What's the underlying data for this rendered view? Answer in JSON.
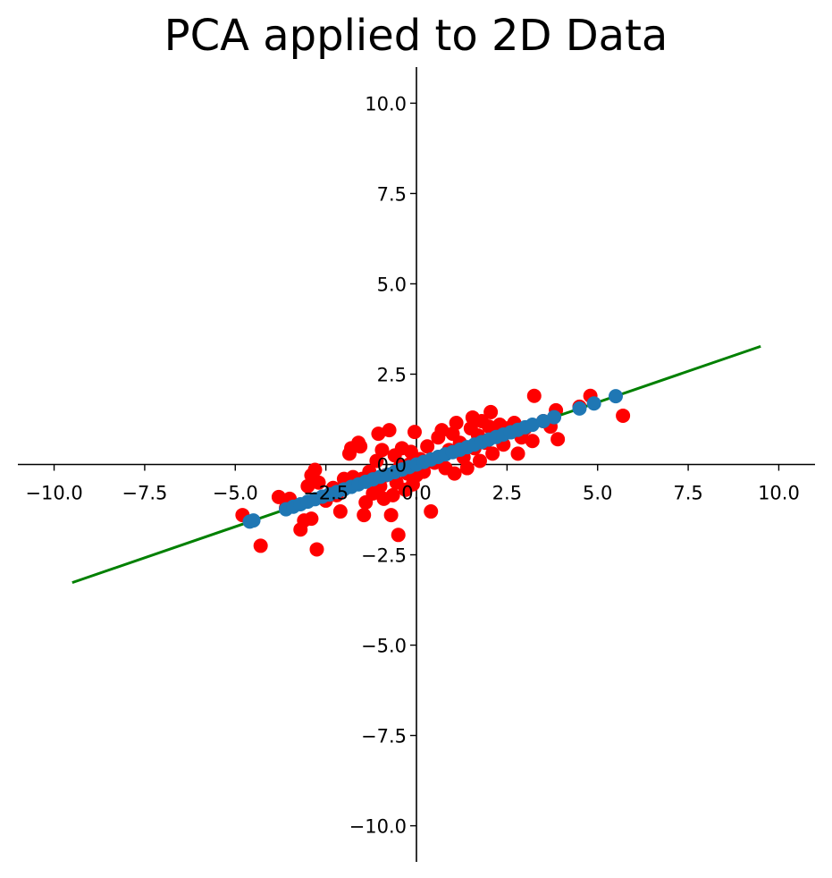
{
  "chart_data": {
    "type": "scatter",
    "title": "PCA applied to 2D Data",
    "xlabel": "",
    "ylabel": "",
    "xlim": [
      -11,
      11
    ],
    "ylim": [
      -11,
      11
    ],
    "grid": false,
    "spines": "centered at origin",
    "xticks": [
      -10.0,
      -7.5,
      -5.0,
      -2.5,
      0.0,
      2.5,
      5.0,
      7.5,
      10.0
    ],
    "yticks": [
      -10.0,
      -7.5,
      -5.0,
      -2.5,
      0.0,
      2.5,
      5.0,
      7.5,
      10.0
    ],
    "xtick_labels": [
      "−10.0",
      "−7.5",
      "−5.0",
      "−2.5",
      "0.0",
      "2.5",
      "5.0",
      "7.5",
      "10.0"
    ],
    "ytick_labels": [
      "−10.0",
      "−7.5",
      "−5.0",
      "−2.5",
      "0.0",
      "2.5",
      "5.0",
      "7.5",
      "10.0"
    ],
    "line": {
      "name": "",
      "color": "#008000",
      "x": [
        -9.5,
        9.5
      ],
      "y": [
        -3.27,
        3.27
      ]
    },
    "series": [
      {
        "name": "",
        "color": "#ff0000",
        "points": [
          [
            -4.8,
            -1.4
          ],
          [
            -4.3,
            -2.25
          ],
          [
            -3.8,
            -0.9
          ],
          [
            -3.5,
            -0.95
          ],
          [
            -3.6,
            -1.2
          ],
          [
            -3.2,
            -1.8
          ],
          [
            -3.1,
            -1.55
          ],
          [
            -3.0,
            -0.6
          ],
          [
            -2.9,
            -1.5
          ],
          [
            -2.9,
            -0.3
          ],
          [
            -2.8,
            -0.15
          ],
          [
            -2.75,
            -2.35
          ],
          [
            -2.7,
            -0.5
          ],
          [
            -2.6,
            -0.9
          ],
          [
            -2.5,
            -1.0
          ],
          [
            -2.3,
            -0.65
          ],
          [
            -2.2,
            -0.85
          ],
          [
            -2.1,
            -1.3
          ],
          [
            -2.0,
            -0.4
          ],
          [
            -1.85,
            0.3
          ],
          [
            -1.8,
            0.45
          ],
          [
            -1.75,
            -0.35
          ],
          [
            -1.6,
            0.6
          ],
          [
            -1.55,
            0.5
          ],
          [
            -1.5,
            -0.4
          ],
          [
            -1.45,
            -1.4
          ],
          [
            -1.4,
            -1.05
          ],
          [
            -1.3,
            -0.2
          ],
          [
            -1.2,
            -0.8
          ],
          [
            -1.1,
            0.1
          ],
          [
            -1.05,
            0.85
          ],
          [
            -1.0,
            -0.6
          ],
          [
            -0.95,
            0.4
          ],
          [
            -0.9,
            -0.95
          ],
          [
            -0.85,
            -0.3
          ],
          [
            -0.75,
            0.95
          ],
          [
            -0.7,
            -1.4
          ],
          [
            -0.65,
            -0.85
          ],
          [
            -0.6,
            0.25
          ],
          [
            -0.55,
            -0.5
          ],
          [
            -0.5,
            -1.95
          ],
          [
            -0.45,
            -0.05
          ],
          [
            -0.4,
            0.45
          ],
          [
            -0.3,
            -0.7
          ],
          [
            -0.25,
            -0.25
          ],
          [
            -0.2,
            0.0
          ],
          [
            -0.15,
            0.35
          ],
          [
            -0.1,
            -0.55
          ],
          [
            -0.05,
            0.9
          ],
          [
            0.0,
            -0.3
          ],
          [
            0.1,
            0.15
          ],
          [
            0.2,
            -0.2
          ],
          [
            0.3,
            0.5
          ],
          [
            0.4,
            -1.3
          ],
          [
            0.5,
            0.05
          ],
          [
            0.6,
            0.75
          ],
          [
            0.7,
            0.95
          ],
          [
            0.8,
            -0.1
          ],
          [
            0.9,
            0.4
          ],
          [
            1.0,
            0.85
          ],
          [
            1.05,
            -0.25
          ],
          [
            1.1,
            1.15
          ],
          [
            1.2,
            0.6
          ],
          [
            1.3,
            0.2
          ],
          [
            1.4,
            -0.1
          ],
          [
            1.5,
            1.0
          ],
          [
            1.55,
            1.3
          ],
          [
            1.6,
            0.45
          ],
          [
            1.7,
            0.8
          ],
          [
            1.75,
            0.1
          ],
          [
            1.8,
            1.2
          ],
          [
            1.9,
            0.6
          ],
          [
            2.0,
            1.05
          ],
          [
            2.05,
            1.45
          ],
          [
            2.1,
            0.3
          ],
          [
            2.2,
            0.85
          ],
          [
            2.3,
            1.1
          ],
          [
            2.4,
            0.55
          ],
          [
            2.5,
            1.0
          ],
          [
            2.7,
            1.15
          ],
          [
            2.8,
            0.3
          ],
          [
            2.9,
            0.75
          ],
          [
            3.0,
            1.0
          ],
          [
            3.2,
            0.65
          ],
          [
            3.25,
            1.9
          ],
          [
            3.5,
            1.2
          ],
          [
            3.7,
            1.05
          ],
          [
            3.85,
            1.5
          ],
          [
            3.9,
            0.7
          ],
          [
            4.5,
            1.6
          ],
          [
            4.8,
            1.9
          ],
          [
            5.7,
            1.35
          ]
        ]
      },
      {
        "name": "",
        "color": "#1f77b4",
        "points": [
          [
            -4.6,
            -1.58
          ],
          [
            -4.5,
            -1.55
          ],
          [
            -3.6,
            -1.24
          ],
          [
            -3.4,
            -1.17
          ],
          [
            -3.2,
            -1.1
          ],
          [
            -3.0,
            -1.03
          ],
          [
            -2.8,
            -0.96
          ],
          [
            -2.6,
            -0.89
          ],
          [
            -2.4,
            -0.83
          ],
          [
            -2.2,
            -0.76
          ],
          [
            -2.0,
            -0.69
          ],
          [
            -1.8,
            -0.62
          ],
          [
            -1.6,
            -0.55
          ],
          [
            -1.4,
            -0.48
          ],
          [
            -1.2,
            -0.41
          ],
          [
            -1.0,
            -0.34
          ],
          [
            -0.8,
            -0.28
          ],
          [
            -0.6,
            -0.21
          ],
          [
            -0.4,
            -0.14
          ],
          [
            -0.2,
            -0.07
          ],
          [
            0.0,
            0.0
          ],
          [
            0.2,
            0.07
          ],
          [
            0.4,
            0.14
          ],
          [
            0.6,
            0.21
          ],
          [
            0.8,
            0.28
          ],
          [
            1.0,
            0.34
          ],
          [
            1.2,
            0.41
          ],
          [
            1.4,
            0.48
          ],
          [
            1.6,
            0.55
          ],
          [
            1.8,
            0.62
          ],
          [
            2.0,
            0.69
          ],
          [
            2.2,
            0.76
          ],
          [
            2.4,
            0.83
          ],
          [
            2.6,
            0.89
          ],
          [
            2.8,
            0.96
          ],
          [
            3.0,
            1.03
          ],
          [
            3.2,
            1.1
          ],
          [
            3.5,
            1.2
          ],
          [
            3.8,
            1.31
          ],
          [
            4.5,
            1.55
          ],
          [
            4.9,
            1.69
          ],
          [
            5.5,
            1.89
          ]
        ]
      }
    ]
  }
}
